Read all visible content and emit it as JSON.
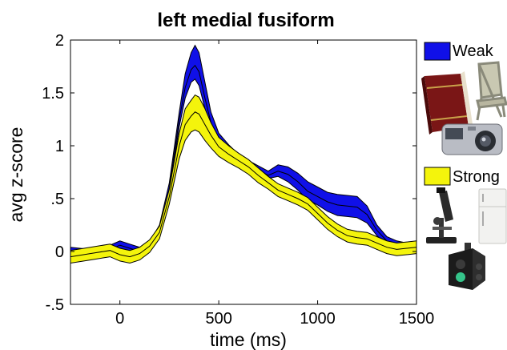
{
  "chart_data": {
    "type": "area",
    "title": "left medial fusiform",
    "xlabel": "time (ms)",
    "ylabel": "avg z-score",
    "xlim": [
      -250,
      1500
    ],
    "ylim": [
      -0.5,
      2
    ],
    "x_ticks": [
      0,
      500,
      1000,
      1500
    ],
    "x_tick_labels": [
      "0",
      "500",
      "1000",
      "1500"
    ],
    "y_ticks": [
      -0.5,
      0,
      0.5,
      1,
      1.5,
      2
    ],
    "y_tick_labels": [
      "-.5",
      "0",
      ".5",
      "1",
      "1.5",
      "2"
    ],
    "grid": false,
    "legend_position": "right",
    "series": [
      {
        "name": "Weak",
        "color": "#1010e8",
        "x": [
          -250,
          -150,
          -50,
          0,
          50,
          100,
          150,
          200,
          250,
          300,
          330,
          360,
          380,
          400,
          430,
          460,
          500,
          550,
          600,
          650,
          700,
          750,
          800,
          850,
          900,
          950,
          1000,
          1050,
          1100,
          1150,
          1200,
          1250,
          1300,
          1350,
          1400,
          1450,
          1500
        ],
        "mean": [
          0.0,
          -0.02,
          0.02,
          0.06,
          0.03,
          0.0,
          0.05,
          0.2,
          0.6,
          1.25,
          1.55,
          1.72,
          1.76,
          1.7,
          1.45,
          1.22,
          1.05,
          0.95,
          0.87,
          0.82,
          0.77,
          0.72,
          0.76,
          0.73,
          0.66,
          0.57,
          0.52,
          0.47,
          0.44,
          0.43,
          0.42,
          0.35,
          0.2,
          0.1,
          0.06,
          0.05,
          0.05
        ],
        "lower": [
          -0.04,
          -0.06,
          -0.02,
          0.02,
          -0.01,
          -0.04,
          0.01,
          0.16,
          0.55,
          1.18,
          1.45,
          1.6,
          1.63,
          1.57,
          1.35,
          1.14,
          0.98,
          0.88,
          0.82,
          0.78,
          0.73,
          0.69,
          0.71,
          0.66,
          0.58,
          0.49,
          0.44,
          0.38,
          0.34,
          0.33,
          0.32,
          0.27,
          0.15,
          0.06,
          0.03,
          0.02,
          0.03
        ],
        "upper": [
          0.04,
          0.02,
          0.06,
          0.1,
          0.07,
          0.04,
          0.09,
          0.25,
          0.65,
          1.32,
          1.68,
          1.88,
          1.95,
          1.88,
          1.6,
          1.32,
          1.12,
          1.01,
          0.92,
          0.86,
          0.81,
          0.76,
          0.82,
          0.8,
          0.74,
          0.66,
          0.61,
          0.56,
          0.54,
          0.53,
          0.52,
          0.43,
          0.25,
          0.14,
          0.1,
          0.08,
          0.07
        ]
      },
      {
        "name": "Strong",
        "color": "#f4f40c",
        "x": [
          -250,
          -150,
          -50,
          0,
          50,
          100,
          150,
          200,
          250,
          300,
          330,
          360,
          380,
          400,
          430,
          460,
          500,
          550,
          600,
          650,
          700,
          750,
          800,
          850,
          900,
          950,
          1000,
          1050,
          1100,
          1150,
          1200,
          1250,
          1300,
          1350,
          1400,
          1450,
          1500
        ],
        "mean": [
          -0.05,
          -0.02,
          0.01,
          -0.03,
          -0.05,
          -0.02,
          0.05,
          0.18,
          0.52,
          1.0,
          1.2,
          1.28,
          1.32,
          1.3,
          1.2,
          1.1,
          0.99,
          0.92,
          0.86,
          0.8,
          0.72,
          0.65,
          0.58,
          0.54,
          0.5,
          0.45,
          0.36,
          0.27,
          0.2,
          0.15,
          0.13,
          0.12,
          0.08,
          0.04,
          0.02,
          0.03,
          0.04
        ],
        "lower": [
          -0.11,
          -0.08,
          -0.05,
          -0.09,
          -0.11,
          -0.08,
          -0.01,
          0.12,
          0.45,
          0.88,
          1.05,
          1.13,
          1.15,
          1.13,
          1.05,
          0.98,
          0.9,
          0.84,
          0.79,
          0.73,
          0.65,
          0.59,
          0.52,
          0.48,
          0.44,
          0.39,
          0.3,
          0.21,
          0.14,
          0.09,
          0.07,
          0.06,
          0.02,
          -0.02,
          -0.04,
          -0.03,
          -0.02
        ],
        "upper": [
          0.01,
          0.04,
          0.07,
          0.03,
          0.01,
          0.04,
          0.11,
          0.24,
          0.59,
          1.12,
          1.35,
          1.43,
          1.48,
          1.46,
          1.35,
          1.22,
          1.08,
          1.0,
          0.93,
          0.87,
          0.79,
          0.71,
          0.64,
          0.6,
          0.56,
          0.51,
          0.42,
          0.33,
          0.26,
          0.21,
          0.19,
          0.18,
          0.14,
          0.1,
          0.08,
          0.09,
          0.1
        ]
      }
    ]
  },
  "legend_icons": {
    "weak": [
      "book-icon",
      "folding-chair-icon",
      "camera-icon"
    ],
    "strong": [
      "microscope-icon",
      "refrigerator-icon",
      "traffic-light-icon"
    ]
  }
}
